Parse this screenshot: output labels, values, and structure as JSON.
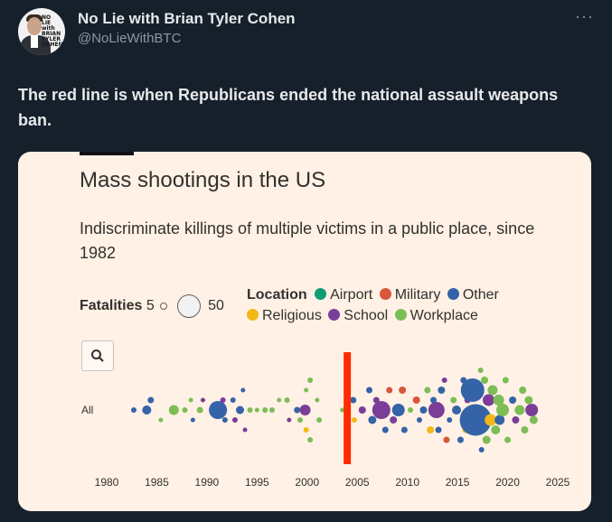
{
  "header": {
    "avatar_text": "NO LIE with BRIAN TYLER COHEN",
    "name": "No Lie with Brian Tyler Cohen",
    "handle": "@NoLieWithBTC",
    "more": "···"
  },
  "tweet": {
    "text": "The red line is when Republicans ended the national assault weapons ban."
  },
  "card": {
    "title": "Mass shootings in the US",
    "subtitle": "Indiscriminate killings of multiple victims in a public place, since 1982",
    "fatalities_label": "Fatalities",
    "fatalities_min": "5",
    "fatalities_max": "50",
    "location_label": "Location",
    "location_items": [
      {
        "label": "Airport",
        "color": "#0f9d73"
      },
      {
        "label": "Military",
        "color": "#d6573b"
      },
      {
        "label": "Other",
        "color": "#3563a8"
      },
      {
        "label": "Religious",
        "color": "#f2b816"
      },
      {
        "label": "School",
        "color": "#7a3e98"
      },
      {
        "label": "Workplace",
        "color": "#7cbd55"
      }
    ],
    "zoom_icon": "search-icon"
  },
  "chart_data": {
    "type": "scatter",
    "title": "Mass shootings in the US",
    "row_label": "All",
    "xlim": [
      1980,
      2025
    ],
    "x_ticks": [
      1980,
      1985,
      1990,
      1995,
      2000,
      2005,
      2010,
      2015,
      2020,
      2025
    ],
    "annotation": {
      "type": "vertical-line",
      "x": 2004,
      "color": "#ff2a00"
    },
    "points": [
      {
        "year": 1982.7,
        "offset": 0,
        "size": 6,
        "loc": "Other"
      },
      {
        "year": 1984.0,
        "offset": 0,
        "size": 10,
        "loc": "Other"
      },
      {
        "year": 1984.4,
        "offset": -1,
        "size": 7,
        "loc": "Other"
      },
      {
        "year": 1985.4,
        "offset": 1,
        "size": 5,
        "loc": "Workplace"
      },
      {
        "year": 1986.7,
        "offset": 0,
        "size": 11,
        "loc": "Workplace"
      },
      {
        "year": 1987.8,
        "offset": 0,
        "size": 6,
        "loc": "Workplace"
      },
      {
        "year": 1988.4,
        "offset": -1,
        "size": 5,
        "loc": "Workplace"
      },
      {
        "year": 1988.6,
        "offset": 1,
        "size": 5,
        "loc": "Other"
      },
      {
        "year": 1989.3,
        "offset": 0,
        "size": 7,
        "loc": "Workplace"
      },
      {
        "year": 1989.6,
        "offset": -1,
        "size": 5,
        "loc": "School"
      },
      {
        "year": 1990.5,
        "offset": 0,
        "size": 6,
        "loc": "Workplace"
      },
      {
        "year": 1991.1,
        "offset": 0,
        "size": 20,
        "loc": "Other"
      },
      {
        "year": 1991.6,
        "offset": -1,
        "size": 6,
        "loc": "School"
      },
      {
        "year": 1991.8,
        "offset": 1,
        "size": 6,
        "loc": "Other"
      },
      {
        "year": 1992.6,
        "offset": -1,
        "size": 6,
        "loc": "Other"
      },
      {
        "year": 1992.8,
        "offset": 1,
        "size": 6,
        "loc": "School"
      },
      {
        "year": 1993.3,
        "offset": 0,
        "size": 9,
        "loc": "Other"
      },
      {
        "year": 1993.6,
        "offset": -2,
        "size": 5,
        "loc": "Other"
      },
      {
        "year": 1993.8,
        "offset": 2,
        "size": 5,
        "loc": "School"
      },
      {
        "year": 1994.3,
        "offset": 0,
        "size": 6,
        "loc": "Workplace"
      },
      {
        "year": 1995.0,
        "offset": 0,
        "size": 5,
        "loc": "Workplace"
      },
      {
        "year": 1995.8,
        "offset": 0,
        "size": 6,
        "loc": "Workplace"
      },
      {
        "year": 1996.5,
        "offset": 0,
        "size": 6,
        "loc": "Workplace"
      },
      {
        "year": 1997.2,
        "offset": -1,
        "size": 5,
        "loc": "Workplace"
      },
      {
        "year": 1998.0,
        "offset": -1,
        "size": 6,
        "loc": "Workplace"
      },
      {
        "year": 1998.2,
        "offset": 1,
        "size": 5,
        "loc": "School"
      },
      {
        "year": 1999.0,
        "offset": 0,
        "size": 7,
        "loc": "Other"
      },
      {
        "year": 1999.3,
        "offset": 1,
        "size": 6,
        "loc": "Workplace"
      },
      {
        "year": 1999.8,
        "offset": 0,
        "size": 12,
        "loc": "School"
      },
      {
        "year": 1999.9,
        "offset": -2,
        "size": 5,
        "loc": "Workplace"
      },
      {
        "year": 1999.9,
        "offset": 2,
        "size": 6,
        "loc": "Religious"
      },
      {
        "year": 2000.3,
        "offset": -3,
        "size": 6,
        "loc": "Workplace"
      },
      {
        "year": 2000.3,
        "offset": 3,
        "size": 6,
        "loc": "Workplace"
      },
      {
        "year": 2001.0,
        "offset": -1,
        "size": 5,
        "loc": "Workplace"
      },
      {
        "year": 2001.2,
        "offset": 1,
        "size": 6,
        "loc": "Workplace"
      },
      {
        "year": 2003.5,
        "offset": 0,
        "size": 5,
        "loc": "Workplace"
      },
      {
        "year": 2004.6,
        "offset": -1,
        "size": 7,
        "loc": "Other"
      },
      {
        "year": 2004.7,
        "offset": 1,
        "size": 6,
        "loc": "Religious"
      },
      {
        "year": 2005.5,
        "offset": 0,
        "size": 8,
        "loc": "School"
      },
      {
        "year": 2006.2,
        "offset": -2,
        "size": 7,
        "loc": "Other"
      },
      {
        "year": 2006.5,
        "offset": 1,
        "size": 9,
        "loc": "Other"
      },
      {
        "year": 2006.9,
        "offset": -1,
        "size": 7,
        "loc": "School"
      },
      {
        "year": 2007.4,
        "offset": 0,
        "size": 20,
        "loc": "School"
      },
      {
        "year": 2007.8,
        "offset": 2,
        "size": 7,
        "loc": "Other"
      },
      {
        "year": 2008.2,
        "offset": -2,
        "size": 7,
        "loc": "Military"
      },
      {
        "year": 2008.6,
        "offset": 1,
        "size": 8,
        "loc": "School"
      },
      {
        "year": 2009.1,
        "offset": 0,
        "size": 14,
        "loc": "Other"
      },
      {
        "year": 2009.5,
        "offset": -2,
        "size": 8,
        "loc": "Military"
      },
      {
        "year": 2009.7,
        "offset": 2,
        "size": 7,
        "loc": "Other"
      },
      {
        "year": 2010.3,
        "offset": 0,
        "size": 6,
        "loc": "Workplace"
      },
      {
        "year": 2010.9,
        "offset": -1,
        "size": 8,
        "loc": "Military"
      },
      {
        "year": 2011.2,
        "offset": 1,
        "size": 6,
        "loc": "Other"
      },
      {
        "year": 2011.6,
        "offset": 0,
        "size": 8,
        "loc": "Other"
      },
      {
        "year": 2012.0,
        "offset": -2,
        "size": 7,
        "loc": "Workplace"
      },
      {
        "year": 2012.3,
        "offset": 2,
        "size": 8,
        "loc": "Religious"
      },
      {
        "year": 2012.6,
        "offset": -1,
        "size": 7,
        "loc": "Other"
      },
      {
        "year": 2012.9,
        "offset": 0,
        "size": 18,
        "loc": "School"
      },
      {
        "year": 2013.1,
        "offset": 2,
        "size": 7,
        "loc": "Other"
      },
      {
        "year": 2013.4,
        "offset": -2,
        "size": 8,
        "loc": "Other"
      },
      {
        "year": 2013.7,
        "offset": -3,
        "size": 6,
        "loc": "School"
      },
      {
        "year": 2013.9,
        "offset": 3,
        "size": 7,
        "loc": "Military"
      },
      {
        "year": 2014.2,
        "offset": 1,
        "size": 6,
        "loc": "Other"
      },
      {
        "year": 2014.6,
        "offset": -1,
        "size": 7,
        "loc": "Workplace"
      },
      {
        "year": 2014.9,
        "offset": 0,
        "size": 10,
        "loc": "Other"
      },
      {
        "year": 2015.3,
        "offset": 3,
        "size": 7,
        "loc": "Other"
      },
      {
        "year": 2015.6,
        "offset": -3,
        "size": 7,
        "loc": "Other"
      },
      {
        "year": 2015.8,
        "offset": 2,
        "size": 7,
        "loc": "Religious"
      },
      {
        "year": 2016.0,
        "offset": -1,
        "size": 7,
        "loc": "School"
      },
      {
        "year": 2016.5,
        "offset": -2,
        "size": 26,
        "loc": "Other"
      },
      {
        "year": 2016.8,
        "offset": 1,
        "size": 35,
        "loc": "Other"
      },
      {
        "year": 2017.3,
        "offset": -4,
        "size": 6,
        "loc": "Workplace"
      },
      {
        "year": 2017.4,
        "offset": 4,
        "size": 6,
        "loc": "Other"
      },
      {
        "year": 2017.7,
        "offset": -3,
        "size": 8,
        "loc": "Workplace"
      },
      {
        "year": 2017.9,
        "offset": 3,
        "size": 9,
        "loc": "Workplace"
      },
      {
        "year": 2018.1,
        "offset": -1,
        "size": 13,
        "loc": "School"
      },
      {
        "year": 2018.3,
        "offset": 1,
        "size": 13,
        "loc": "Religious"
      },
      {
        "year": 2018.5,
        "offset": -2,
        "size": 11,
        "loc": "Workplace"
      },
      {
        "year": 2018.8,
        "offset": 2,
        "size": 10,
        "loc": "Workplace"
      },
      {
        "year": 2019.1,
        "offset": -1,
        "size": 12,
        "loc": "Workplace"
      },
      {
        "year": 2019.2,
        "offset": 1,
        "size": 11,
        "loc": "Other"
      },
      {
        "year": 2019.5,
        "offset": 0,
        "size": 14,
        "loc": "Workplace"
      },
      {
        "year": 2019.8,
        "offset": -3,
        "size": 7,
        "loc": "Workplace"
      },
      {
        "year": 2020.0,
        "offset": 3,
        "size": 7,
        "loc": "Workplace"
      },
      {
        "year": 2020.5,
        "offset": -1,
        "size": 8,
        "loc": "Other"
      },
      {
        "year": 2020.8,
        "offset": 1,
        "size": 8,
        "loc": "School"
      },
      {
        "year": 2021.2,
        "offset": 0,
        "size": 11,
        "loc": "Workplace"
      },
      {
        "year": 2021.5,
        "offset": -2,
        "size": 8,
        "loc": "Workplace"
      },
      {
        "year": 2021.7,
        "offset": 2,
        "size": 8,
        "loc": "Workplace"
      },
      {
        "year": 2022.1,
        "offset": -1,
        "size": 9,
        "loc": "Workplace"
      },
      {
        "year": 2022.4,
        "offset": 0,
        "size": 14,
        "loc": "School"
      },
      {
        "year": 2022.6,
        "offset": 1,
        "size": 9,
        "loc": "Workplace"
      }
    ]
  }
}
